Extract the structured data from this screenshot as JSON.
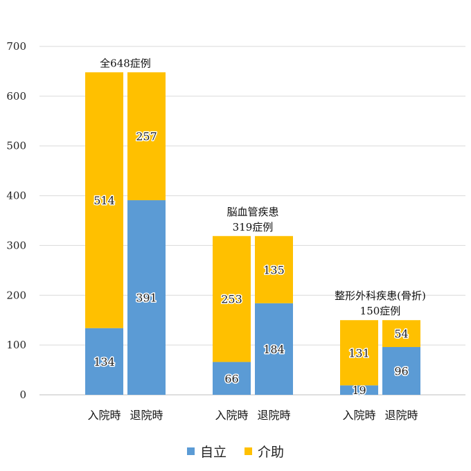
{
  "chart_data": {
    "type": "bar",
    "stacked": true,
    "ylim": [
      0,
      700
    ],
    "yticks": [
      0,
      100,
      200,
      300,
      400,
      500,
      600,
      700
    ],
    "grid": true,
    "legend_position": "bottom",
    "groups": [
      {
        "title_lines": [
          "全648症例"
        ],
        "bars": [
          {
            "label": "入院時",
            "values": [
              134,
              514
            ]
          },
          {
            "label": "退院時",
            "values": [
              391,
              257
            ]
          }
        ]
      },
      {
        "title_lines": [
          "脳血管疾患",
          "319症例"
        ],
        "bars": [
          {
            "label": "入院時",
            "values": [
              66,
              253
            ]
          },
          {
            "label": "退院時",
            "values": [
              184,
              135
            ]
          }
        ]
      },
      {
        "title_lines": [
          "整形外科疾患(骨折)",
          "150症例"
        ],
        "bars": [
          {
            "label": "入院時",
            "values": [
              19,
              131
            ]
          },
          {
            "label": "退院時",
            "values": [
              96,
              54
            ]
          }
        ]
      }
    ],
    "series": [
      {
        "name": "自立",
        "color": "#5b9bd5"
      },
      {
        "name": "介助",
        "color": "#ffc000"
      }
    ]
  }
}
